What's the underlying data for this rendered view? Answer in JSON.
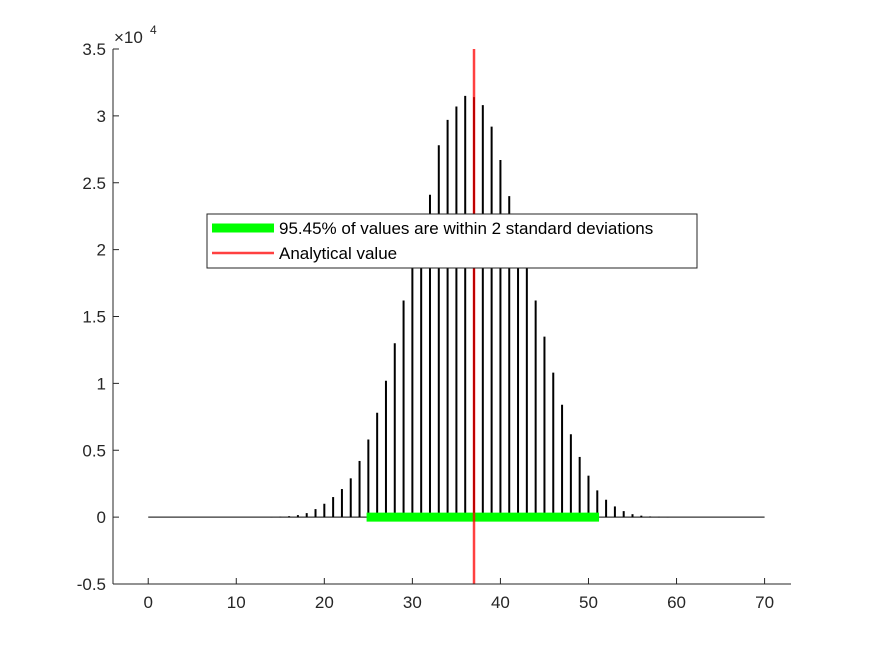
{
  "chart_data": {
    "type": "bar",
    "style": "stem",
    "title": "",
    "xlabel": "",
    "ylabel": "",
    "xlim": [
      -4,
      73
    ],
    "ylim": [
      -5000,
      35000
    ],
    "x_ticks": [
      0,
      10,
      20,
      30,
      40,
      50,
      60,
      70
    ],
    "y_ticks": [
      -5000,
      0,
      5000,
      10000,
      15000,
      20000,
      25000,
      30000,
      35000
    ],
    "y_tick_labels": [
      "-0.5",
      "0",
      "0.5",
      "1",
      "1.5",
      "2",
      "2.5",
      "3",
      "3.5"
    ],
    "y_exponent_label": "×10",
    "y_exponent_power": "4",
    "grid": false,
    "legend_position": "upper-left-center",
    "series": [
      {
        "name": "",
        "color": "#000000",
        "x": [
          0,
          1,
          2,
          3,
          4,
          5,
          6,
          7,
          8,
          9,
          10,
          11,
          12,
          13,
          14,
          15,
          16,
          17,
          18,
          19,
          20,
          21,
          22,
          23,
          24,
          25,
          26,
          27,
          28,
          29,
          30,
          31,
          32,
          33,
          34,
          35,
          36,
          37,
          38,
          39,
          40,
          41,
          42,
          43,
          44,
          45,
          46,
          47,
          48,
          49,
          50,
          51,
          52,
          53,
          54,
          55,
          56,
          57,
          58,
          59,
          60,
          61,
          62,
          63,
          64,
          65,
          66,
          67,
          68,
          69,
          70
        ],
        "values": [
          0,
          0,
          0,
          0,
          0,
          0,
          0,
          0,
          0,
          0,
          0,
          0,
          0,
          0,
          10,
          30,
          70,
          150,
          300,
          600,
          1000,
          1500,
          2100,
          2900,
          4200,
          5800,
          7800,
          10200,
          13000,
          16200,
          19500,
          22200,
          24100,
          27800,
          29700,
          30700,
          31500,
          31400,
          30800,
          29200,
          26700,
          24000,
          21400,
          19000,
          16200,
          13500,
          10800,
          8400,
          6200,
          4500,
          3100,
          2000,
          1300,
          800,
          450,
          220,
          110,
          50,
          20,
          8,
          0,
          0,
          0,
          0,
          0,
          0,
          0,
          0,
          0,
          0,
          0
        ]
      },
      {
        "name": "95.45% of values are within 2 standard deviations",
        "color": "#00ff00",
        "x_range": [
          24.8,
          51.2
        ],
        "y": 0
      },
      {
        "name": "Analytical value",
        "color": "#ff0000",
        "x": 37,
        "y_range": [
          -5000,
          35000
        ]
      }
    ]
  }
}
